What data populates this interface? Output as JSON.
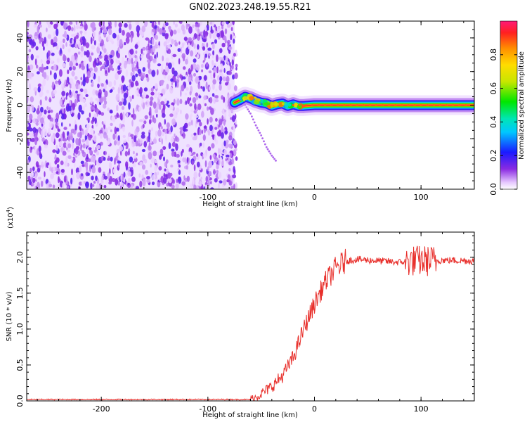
{
  "title": "GN02.2023.248.19.55.R21",
  "chart_data": [
    {
      "type": "heatmap",
      "xlabel": "Height of straight line (km)",
      "ylabel": "Frequency (Hz)",
      "xlim": [
        -270,
        150
      ],
      "ylim": [
        -50,
        50
      ],
      "xticks": [
        -200,
        -100,
        0,
        100
      ],
      "yticks": [
        -40,
        -20,
        0,
        20,
        40
      ],
      "colorbar": {
        "label": "Normalized spectral amplitude",
        "range": [
          0,
          1
        ],
        "ticks": [
          "0.0",
          "0.2",
          "0.4",
          "0.6",
          "0.8"
        ],
        "tick_values": [
          0,
          0.2,
          0.4,
          0.6,
          0.8
        ]
      },
      "noise_region_x": [
        -270,
        -75
      ],
      "signal_trace": {
        "x": [
          -75,
          -70,
          -65,
          -60,
          -55,
          -50,
          -45,
          -40,
          -35,
          -30,
          -25,
          -20,
          -15,
          -10,
          0,
          20,
          50,
          100,
          150
        ],
        "y": [
          1.5,
          3,
          5,
          4,
          2.5,
          1.5,
          1,
          -0.5,
          0.5,
          1,
          -0.5,
          0.5,
          -0.5,
          -0.5,
          0,
          0,
          0,
          0,
          0
        ]
      },
      "branch_trace": {
        "x": [
          -65,
          -60,
          -55,
          -50,
          -45,
          -40,
          -35
        ],
        "y": [
          0,
          -5,
          -12,
          -18,
          -25,
          -30,
          -34
        ]
      }
    },
    {
      "type": "line",
      "xlabel": "Height of straight line (km)",
      "ylabel": "SNR (10 * v/v)",
      "scale_label": "(x10",
      "scale_exp": "4",
      "scale_close": ")",
      "xlim": [
        -270,
        150
      ],
      "ylim": [
        0,
        2.35
      ],
      "xticks": [
        -200,
        -100,
        0,
        100
      ],
      "yticks": [
        0,
        0.5,
        1.0,
        1.5,
        2.0
      ],
      "ytick_labels": [
        "0.0",
        "0.5",
        "1.0",
        "1.5",
        "2.0"
      ],
      "line_color": "#e8302c",
      "series": [
        {
          "x": [
            -270,
            -60,
            -55,
            -50,
            -40,
            -30,
            -20,
            -10,
            0,
            10,
            20,
            30,
            40,
            60,
            80,
            90,
            100,
            110,
            120,
            150
          ],
          "values": [
            0.02,
            0.02,
            0.05,
            0.1,
            0.2,
            0.35,
            0.6,
            1.0,
            1.35,
            1.65,
            1.85,
            1.95,
            1.97,
            1.95,
            1.93,
            1.95,
            1.95,
            1.95,
            1.96,
            1.95
          ]
        }
      ]
    }
  ]
}
